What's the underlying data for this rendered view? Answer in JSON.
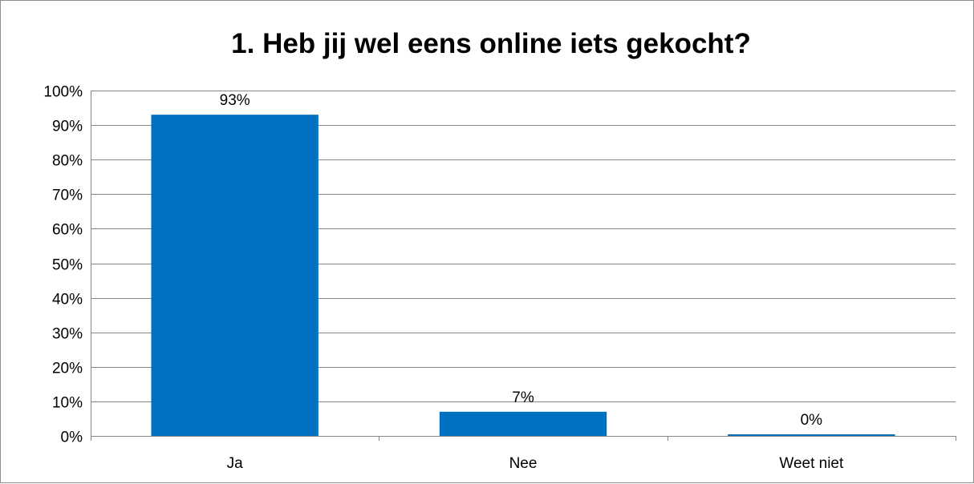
{
  "chart_data": {
    "type": "bar",
    "title": "1. Heb jij wel eens online iets gekocht?",
    "categories": [
      "Ja",
      "Nee",
      "Weet niet"
    ],
    "values": [
      93,
      7,
      0
    ],
    "data_labels": [
      "93%",
      "7%",
      "0%"
    ],
    "xlabel": "",
    "ylabel": "",
    "ylim": [
      0,
      100
    ],
    "yticks": [
      0,
      10,
      20,
      30,
      40,
      50,
      60,
      70,
      80,
      90,
      100
    ],
    "ytick_labels": [
      "0%",
      "10%",
      "20%",
      "30%",
      "40%",
      "50%",
      "60%",
      "70%",
      "80%",
      "90%",
      "100%"
    ],
    "grid": true,
    "legend": "none",
    "bar_color": "#0070c0",
    "gridline_color": "#868686"
  }
}
